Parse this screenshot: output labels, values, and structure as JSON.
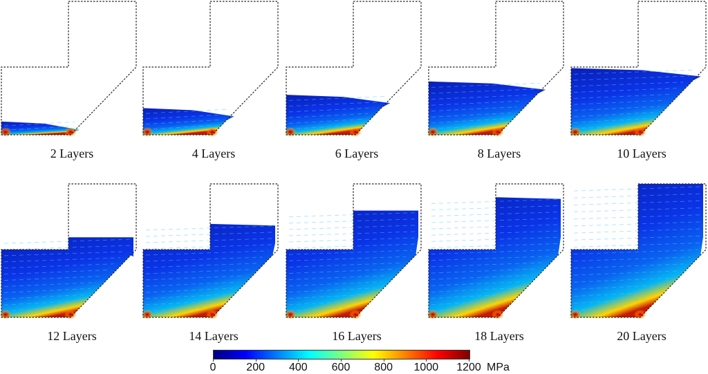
{
  "panels": [
    {
      "label": "2 Layers",
      "layers": 2
    },
    {
      "label": "4 Layers",
      "layers": 4
    },
    {
      "label": "6 Layers",
      "layers": 6
    },
    {
      "label": "8 Layers",
      "layers": 8
    },
    {
      "label": "10 Layers",
      "layers": 10
    },
    {
      "label": "12 Layers",
      "layers": 12
    },
    {
      "label": "14 Layers",
      "layers": 14
    },
    {
      "label": "16 Layers",
      "layers": 16
    },
    {
      "label": "18 Layers",
      "layers": 18
    },
    {
      "label": "20 Layers",
      "layers": 20
    }
  ],
  "colorbar": {
    "unit": "MPa",
    "ticks": [
      "0",
      "200",
      "400",
      "600",
      "800",
      "1000",
      "1200"
    ],
    "min": 0,
    "max": 1200,
    "colors": [
      "#00007f",
      "#0000ff",
      "#007fff",
      "#00ffff",
      "#7fff7f",
      "#ffff00",
      "#ff7f00",
      "#ff0000",
      "#7f0000"
    ]
  },
  "total_layers": 20
}
